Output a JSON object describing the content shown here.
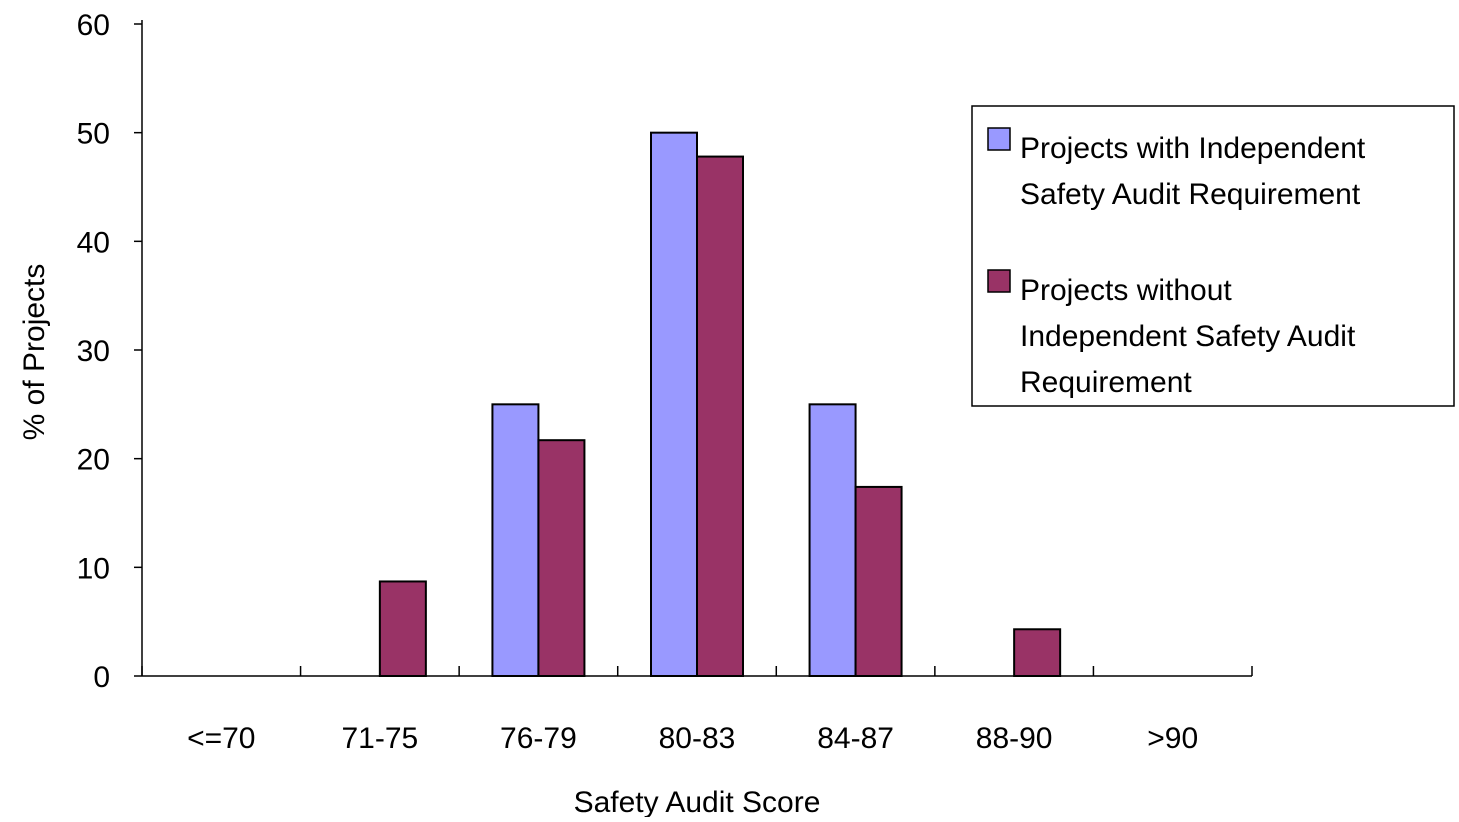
{
  "chart_data": {
    "type": "bar",
    "title": "",
    "xlabel": "Safety Audit Score",
    "ylabel": "% of Projects",
    "categories": [
      "<=70",
      "71-75",
      "76-79",
      "80-83",
      "84-87",
      "88-90",
      ">90"
    ],
    "series": [
      {
        "name": "Projects with Independent Safety Audit Requirement",
        "legend_lines": [
          "Projects with Independent",
          "Safety Audit Requirement"
        ],
        "color": "#9999ff",
        "values": [
          0,
          0,
          25,
          50,
          25,
          0,
          0
        ]
      },
      {
        "name": "Projects without Independent Safety Audit Requirement",
        "legend_lines": [
          "Projects without",
          "Independent Safety Audit",
          "Requirement"
        ],
        "color": "#993366",
        "values": [
          0,
          8.7,
          21.7,
          47.8,
          17.4,
          4.3,
          0
        ]
      }
    ],
    "ylim": [
      0,
      60
    ],
    "yticks": [
      0,
      10,
      20,
      30,
      40,
      50,
      60
    ],
    "grid": false,
    "legend_position": "right"
  }
}
